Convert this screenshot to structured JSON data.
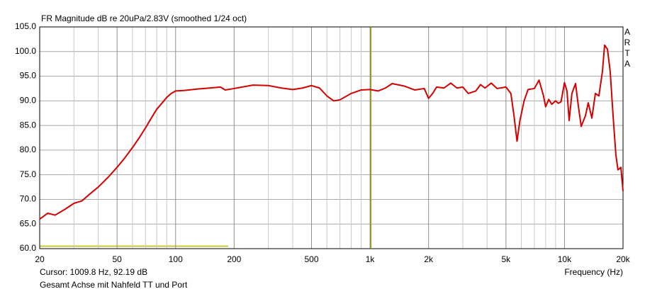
{
  "chart_data": {
    "type": "line",
    "title": "FR Magnitude dB re 20uPa/2.83V (smoothed 1/24 oct)",
    "brand": "ARTA",
    "cursor_label": "Cursor: 1009.8 Hz, 92.19 dB",
    "cursor": {
      "x": 1009.8,
      "y": 92.19,
      "color": "#9c9c00"
    },
    "subtitle": "Gesamt Achse mit Nahfeld TT und Port",
    "x_label": "Frequency (Hz)",
    "xscale": "log",
    "xlim": [
      20,
      20000
    ],
    "ylim": [
      60,
      105
    ],
    "xticks": [
      20,
      50,
      100,
      200,
      500,
      {
        "value": 1000,
        "label": "1k"
      },
      {
        "value": 2000,
        "label": "2k"
      },
      {
        "value": 5000,
        "label": "5k"
      },
      {
        "value": 10000,
        "label": "10k"
      },
      {
        "value": 20000,
        "label": "20k"
      }
    ],
    "xminor": [
      30,
      40,
      60,
      70,
      80,
      90,
      300,
      400,
      600,
      700,
      800,
      900,
      3000,
      4000,
      6000,
      7000,
      8000,
      9000
    ],
    "yticks": [
      {
        "value": 60,
        "label": "60.0"
      },
      {
        "value": 65,
        "label": "65.0"
      },
      {
        "value": 70,
        "label": "70.0"
      },
      {
        "value": 75,
        "label": "75.0"
      },
      {
        "value": 80,
        "label": "80.0"
      },
      {
        "value": 85,
        "label": "85.0"
      },
      {
        "value": 90,
        "label": "90.0"
      },
      {
        "value": 95,
        "label": "95.0"
      },
      {
        "value": 100,
        "label": "100.0"
      },
      {
        "value": 105,
        "label": "105.0"
      }
    ],
    "grid": true,
    "series": [
      {
        "name": "FR",
        "color": "#d40000",
        "x": [
          20,
          22,
          24,
          27,
          30,
          33,
          36,
          40,
          45,
          50,
          55,
          60,
          65,
          70,
          75,
          80,
          85,
          90,
          95,
          100,
          110,
          130,
          150,
          170,
          180,
          200,
          220,
          250,
          300,
          350,
          400,
          450,
          500,
          550,
          600,
          650,
          700,
          800,
          900,
          1000,
          1100,
          1200,
          1300,
          1500,
          1700,
          1900,
          2000,
          2100,
          2200,
          2400,
          2600,
          2800,
          3000,
          3200,
          3500,
          3700,
          3900,
          4200,
          4500,
          5000,
          5300,
          5500,
          5700,
          5900,
          6200,
          6500,
          7000,
          7400,
          7800,
          8000,
          8300,
          8600,
          9000,
          9300,
          9600,
          10000,
          10300,
          10570,
          10920,
          11400,
          11780,
          12190,
          12820,
          13250,
          13830,
          14420,
          15030,
          15680,
          16080,
          16630,
          17180,
          17780,
          18380,
          18840,
          19500,
          20000
        ],
        "values": [
          66,
          67.2,
          66.8,
          68,
          69.2,
          69.7,
          71,
          72.5,
          74.5,
          76.5,
          78.5,
          80.5,
          82.5,
          84.5,
          86.5,
          88.3,
          89.5,
          90.7,
          91.5,
          92,
          92.1,
          92.4,
          92.6,
          92.8,
          92.2,
          92.5,
          92.8,
          93.2,
          93.1,
          92.6,
          92.3,
          92.6,
          93.1,
          92.6,
          91,
          90,
          90.2,
          91.5,
          92.2,
          92.3,
          92,
          92.6,
          93.5,
          93,
          92.2,
          92.5,
          90.5,
          91.5,
          92.8,
          92.6,
          93.6,
          92.6,
          92.8,
          91.5,
          92,
          93.3,
          92.6,
          93.6,
          92.5,
          92.8,
          91.5,
          87,
          81.8,
          86,
          90,
          92.3,
          92.5,
          94.2,
          91,
          88.8,
          90.3,
          89.3,
          90,
          89.5,
          89.8,
          93.7,
          92,
          86,
          91.5,
          93.5,
          89,
          84.8,
          87,
          89.6,
          86.5,
          91.5,
          91,
          96,
          101.3,
          100.5,
          96,
          87,
          79,
          76,
          76.5,
          71.7
        ]
      }
    ]
  }
}
